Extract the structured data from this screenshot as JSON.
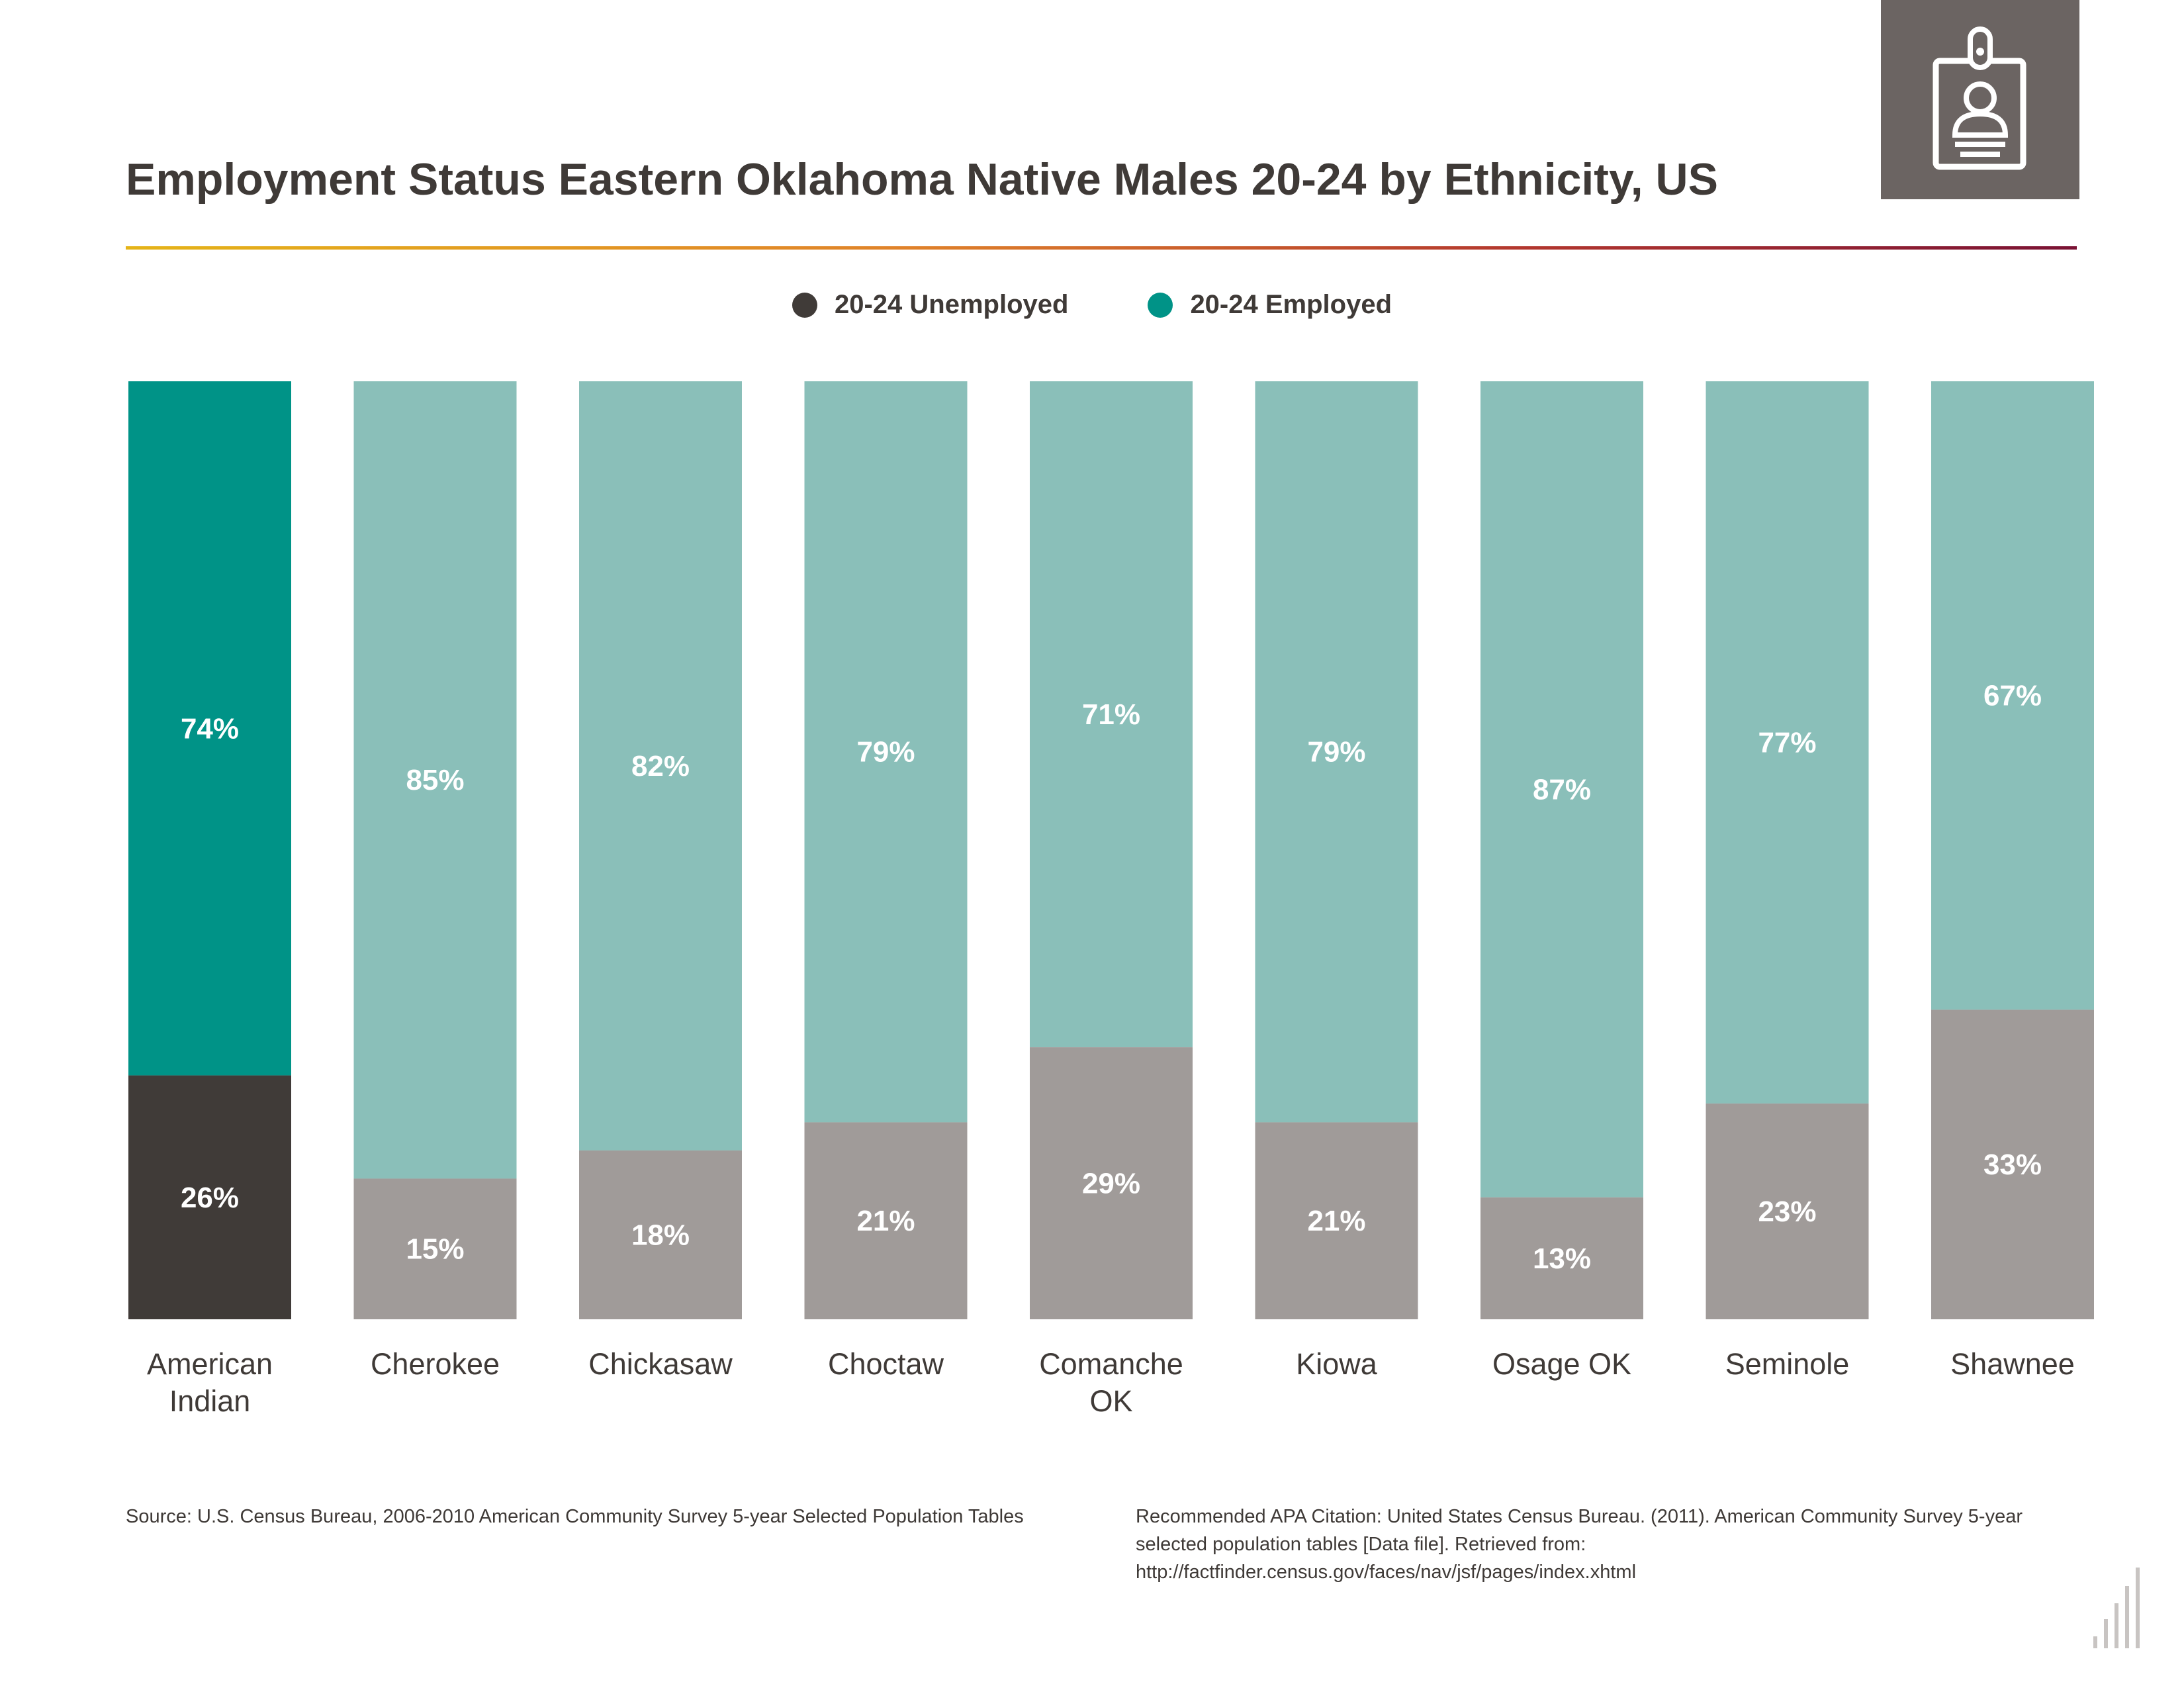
{
  "title": "Employment Status Eastern Oklahoma Native Males 20-24 by Ethnicity, US",
  "badge_icon": "id-badge-icon",
  "legend": [
    {
      "label": "20-24 Unemployed",
      "color": "#403b38"
    },
    {
      "label": "20-24 Employed",
      "color": "#009387"
    }
  ],
  "colors": {
    "highlight_employed": "#009387",
    "highlight_unemployed": "#403b38",
    "employed": "#8abfb9",
    "unemployed": "#a09b99",
    "value_label": "#ffffff"
  },
  "chart_data": {
    "type": "bar",
    "stacked": true,
    "normalized": true,
    "categories": [
      [
        "American",
        "Indian"
      ],
      [
        "Cherokee"
      ],
      [
        "Chickasaw"
      ],
      [
        "Choctaw"
      ],
      [
        "Comanche",
        "OK"
      ],
      [
        "Kiowa"
      ],
      [
        "Osage OK"
      ],
      [
        "Seminole"
      ],
      [
        "Shawnee"
      ]
    ],
    "highlight_index": 0,
    "series": [
      {
        "name": "20-24 Unemployed",
        "values": [
          26,
          15,
          18,
          21,
          29,
          21,
          13,
          23,
          33
        ],
        "labels": [
          "26%",
          "15%",
          "18%",
          "21%",
          "29%",
          "21%",
          "13%",
          "23%",
          "33%"
        ]
      },
      {
        "name": "20-24 Employed",
        "values": [
          74,
          85,
          82,
          79,
          71,
          79,
          87,
          77,
          67
        ],
        "labels": [
          "74%",
          "85%",
          "82%",
          "79%",
          "71%",
          "79%",
          "87%",
          "77%",
          "67%"
        ]
      }
    ],
    "ylim": [
      0,
      100
    ],
    "grid": false,
    "legend_position": "top-center"
  },
  "source": "Source:  U.S. Census Bureau, 2006-2010 American Community Survey 5-year Selected Population Tables",
  "citation": "Recommended APA Citation: United States Census Bureau. (2011). American Community Survey 5-year selected population tables [Data file]. Retrieved from: http://factfinder.census.gov/faces/nav/jsf/pages/index.xhtml"
}
